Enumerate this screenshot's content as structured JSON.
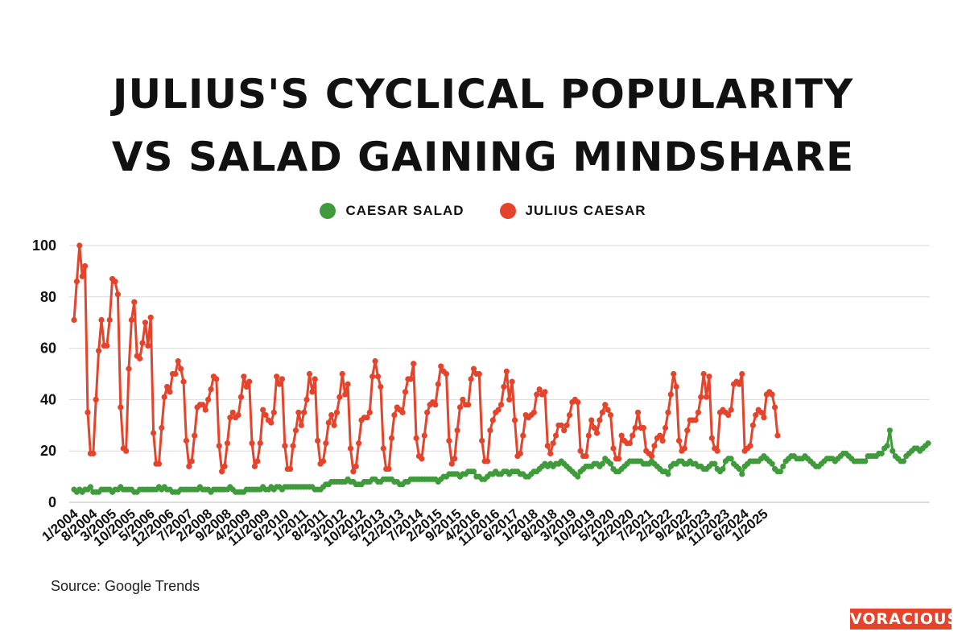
{
  "title_line1": "JULIUS'S CYCLICAL POPULARITY",
  "title_line2": "VS SALAD GAINING MINDSHARE",
  "source": "Source: Google Trends",
  "brand": "VORACIOUS",
  "colors": {
    "caesar_salad": "#3f9b3b",
    "julius_caesar": "#e4442b",
    "grid": "#d9d9d9"
  },
  "chart_data": {
    "type": "line",
    "title": "JULIUS'S CYCLICAL POPULARITY VS SALAD GAINING MINDSHARE",
    "ylim": [
      0,
      100
    ],
    "yticks": [
      0,
      20,
      40,
      60,
      80,
      100
    ],
    "grid": true,
    "legend_position": "top-center",
    "x_start": "1/2004",
    "x_interval_months": 1,
    "x_tick_labels": [
      "1/2004",
      "8/2004",
      "3/2005",
      "10/2005",
      "5/2006",
      "12/2006",
      "7/2007",
      "2/2008",
      "9/2008",
      "4/2009",
      "11/2009",
      "6/2010",
      "1/2011",
      "8/2011",
      "3/2012",
      "10/2012",
      "5/2013",
      "12/2013",
      "7/2014",
      "2/2015",
      "9/2015",
      "4/2016",
      "11/2016",
      "6/2017",
      "1/2018",
      "8/2018",
      "3/2019",
      "10/2019",
      "5/2020",
      "12/2020",
      "7/2021",
      "2/2022",
      "9/2022",
      "4/2023",
      "11/2023",
      "6/2024",
      "1/2025"
    ],
    "series": [
      {
        "name": "CAESAR SALAD",
        "values": [
          5,
          4,
          5,
          4,
          5,
          5,
          6,
          4,
          4,
          4,
          5,
          5,
          5,
          5,
          4,
          5,
          5,
          6,
          5,
          5,
          5,
          5,
          4,
          4,
          5,
          5,
          5,
          5,
          5,
          5,
          5,
          6,
          5,
          6,
          5,
          5,
          4,
          4,
          4,
          5,
          5,
          5,
          5,
          5,
          5,
          5,
          6,
          5,
          5,
          5,
          4,
          5,
          5,
          5,
          5,
          5,
          5,
          6,
          5,
          4,
          4,
          4,
          4,
          5,
          5,
          5,
          5,
          5,
          5,
          6,
          5,
          5,
          6,
          5,
          6,
          6,
          5,
          6,
          6,
          6,
          6,
          6,
          6,
          6,
          6,
          6,
          6,
          6,
          5,
          5,
          5,
          6,
          7,
          7,
          8,
          8,
          8,
          8,
          8,
          8,
          9,
          8,
          8,
          7,
          7,
          7,
          8,
          8,
          8,
          9,
          9,
          8,
          8,
          9,
          9,
          9,
          9,
          8,
          8,
          7,
          7,
          8,
          8,
          9,
          9,
          9,
          9,
          9,
          9,
          9,
          9,
          9,
          9,
          8,
          9,
          10,
          10,
          11,
          11,
          11,
          11,
          10,
          11,
          11,
          12,
          12,
          12,
          10,
          10,
          9,
          9,
          10,
          11,
          11,
          12,
          11,
          11,
          12,
          12,
          11,
          12,
          12,
          12,
          11,
          11,
          10,
          10,
          11,
          12,
          12,
          13,
          14,
          15,
          14,
          15,
          14,
          15,
          15,
          16,
          15,
          14,
          13,
          12,
          11,
          10,
          12,
          13,
          14,
          14,
          14,
          15,
          15,
          14,
          15,
          17,
          16,
          15,
          13,
          12,
          12,
          13,
          14,
          15,
          16,
          16,
          16,
          16,
          16,
          15,
          15,
          15,
          16,
          15,
          14,
          13,
          12,
          12,
          11,
          14,
          15,
          15,
          16,
          16,
          15,
          15,
          16,
          15,
          15,
          14,
          14,
          13,
          13,
          14,
          15,
          15,
          13,
          12,
          13,
          16,
          17,
          17,
          15,
          14,
          13,
          11,
          14,
          15,
          16,
          16,
          16,
          16,
          17,
          18,
          17,
          16,
          15,
          13,
          12,
          12,
          14,
          16,
          17,
          18,
          18,
          17,
          17,
          17,
          18,
          17,
          16,
          15,
          14,
          14,
          15,
          16,
          17,
          17,
          17,
          16,
          17,
          18,
          19,
          19,
          18,
          17,
          16,
          16,
          16,
          16,
          16,
          18,
          18,
          18,
          18,
          19,
          19,
          21,
          22,
          28,
          20,
          18,
          17,
          16,
          16,
          18,
          19,
          20,
          21,
          21,
          20,
          21,
          22,
          23
        ]
      },
      {
        "name": "JULIUS CAESAR",
        "values": [
          71,
          86,
          100,
          88,
          92,
          35,
          19,
          19,
          40,
          59,
          71,
          61,
          61,
          71,
          87,
          86,
          81,
          37,
          21,
          20,
          52,
          71,
          78,
          57,
          56,
          62,
          70,
          61,
          72,
          27,
          15,
          15,
          29,
          41,
          45,
          43,
          50,
          50,
          55,
          52,
          47,
          24,
          14,
          16,
          26,
          37,
          38,
          38,
          36,
          40,
          44,
          49,
          48,
          22,
          12,
          14,
          23,
          33,
          35,
          33,
          34,
          41,
          49,
          45,
          47,
          23,
          14,
          16,
          23,
          36,
          34,
          32,
          31,
          35,
          49,
          46,
          48,
          22,
          13,
          13,
          22,
          28,
          35,
          30,
          35,
          40,
          50,
          43,
          48,
          24,
          15,
          16,
          23,
          31,
          34,
          30,
          35,
          41,
          50,
          42,
          46,
          21,
          12,
          14,
          23,
          32,
          33,
          33,
          35,
          49,
          55,
          49,
          45,
          21,
          13,
          13,
          25,
          34,
          37,
          36,
          35,
          43,
          48,
          48,
          54,
          25,
          18,
          17,
          26,
          35,
          38,
          39,
          38,
          46,
          53,
          51,
          50,
          24,
          15,
          17,
          28,
          37,
          40,
          38,
          38,
          48,
          52,
          50,
          50,
          24,
          16,
          16,
          28,
          32,
          35,
          36,
          38,
          45,
          51,
          40,
          47,
          32,
          18,
          19,
          26,
          34,
          33,
          34,
          35,
          42,
          44,
          42,
          43,
          22,
          19,
          23,
          26,
          30,
          30,
          28,
          30,
          34,
          39,
          40,
          39,
          20,
          18,
          18,
          26,
          32,
          29,
          27,
          32,
          35,
          38,
          36,
          34,
          21,
          17,
          17,
          26,
          24,
          23,
          23,
          26,
          29,
          35,
          29,
          29,
          20,
          19,
          18,
          22,
          25,
          26,
          24,
          29,
          35,
          42,
          50,
          45,
          24,
          20,
          21,
          28,
          32,
          32,
          32,
          35,
          41,
          50,
          41,
          49,
          25,
          21,
          20,
          35,
          36,
          35,
          34,
          36,
          46,
          47,
          46,
          50,
          20,
          21,
          22,
          30,
          34,
          36,
          35,
          33,
          42,
          43,
          42,
          37,
          26
        ]
      }
    ]
  }
}
